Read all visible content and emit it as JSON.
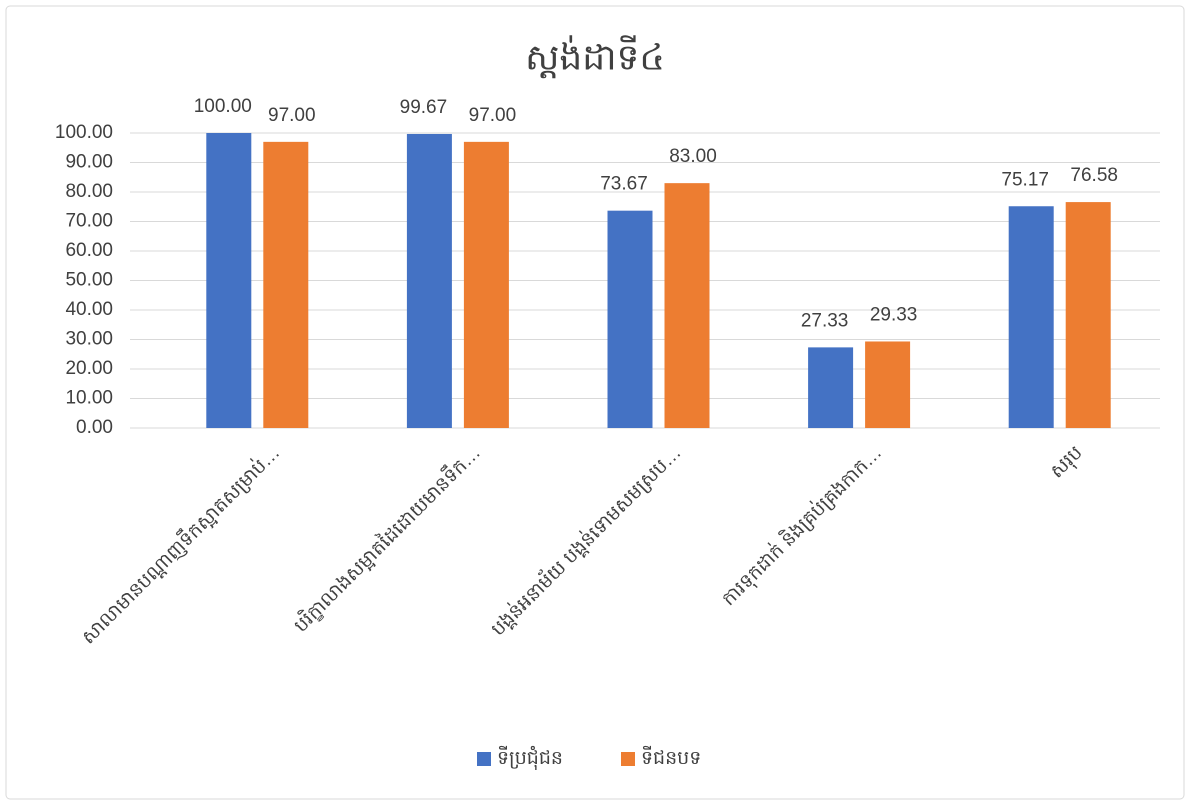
{
  "chart_data": {
    "type": "bar",
    "title": "ស្ដង់ដាទី៤",
    "categories": [
      "សាលាមានបណ្ដាញទឹកស្អាតសម្រាប់…",
      "បរិក្ខាលាងសម្អាតដៃដោយមានទឹក…",
      "បង្គន់អនាម័យ បង្គន់ទោមសមស្រប…",
      "ការទុកដាក់ និងគ្រប់គ្រងកាក…",
      "សរុប"
    ],
    "series": [
      {
        "name": "ទីប្រជុំជន",
        "color": "#4472c4",
        "values": [
          100,
          99.67,
          73.67,
          27.33,
          75.17
        ],
        "value_labels": [
          "100.00",
          "99.67",
          "73.67",
          "27.33",
          "75.17"
        ]
      },
      {
        "name": "ទីជនបទ",
        "color": "#ed7d31",
        "values": [
          97,
          97,
          83,
          29.33,
          76.58
        ],
        "value_labels": [
          "97.00",
          "97.00",
          "83.00",
          "29.33",
          "76.58"
        ]
      }
    ],
    "ylim": [
      0,
      100
    ],
    "yticks": [
      {
        "value": 0,
        "label": "0.00"
      },
      {
        "value": 10,
        "label": "10.00"
      },
      {
        "value": 20,
        "label": "20.00"
      },
      {
        "value": 30,
        "label": "30.00"
      },
      {
        "value": 40,
        "label": "40.00"
      },
      {
        "value": 50,
        "label": "50.00"
      },
      {
        "value": 60,
        "label": "60.00"
      },
      {
        "value": 70,
        "label": "70.00"
      },
      {
        "value": 80,
        "label": "80.00"
      },
      {
        "value": 90,
        "label": "90.00"
      },
      {
        "value": 100,
        "label": "100.00"
      }
    ],
    "grid": true,
    "legend": "bottom"
  }
}
